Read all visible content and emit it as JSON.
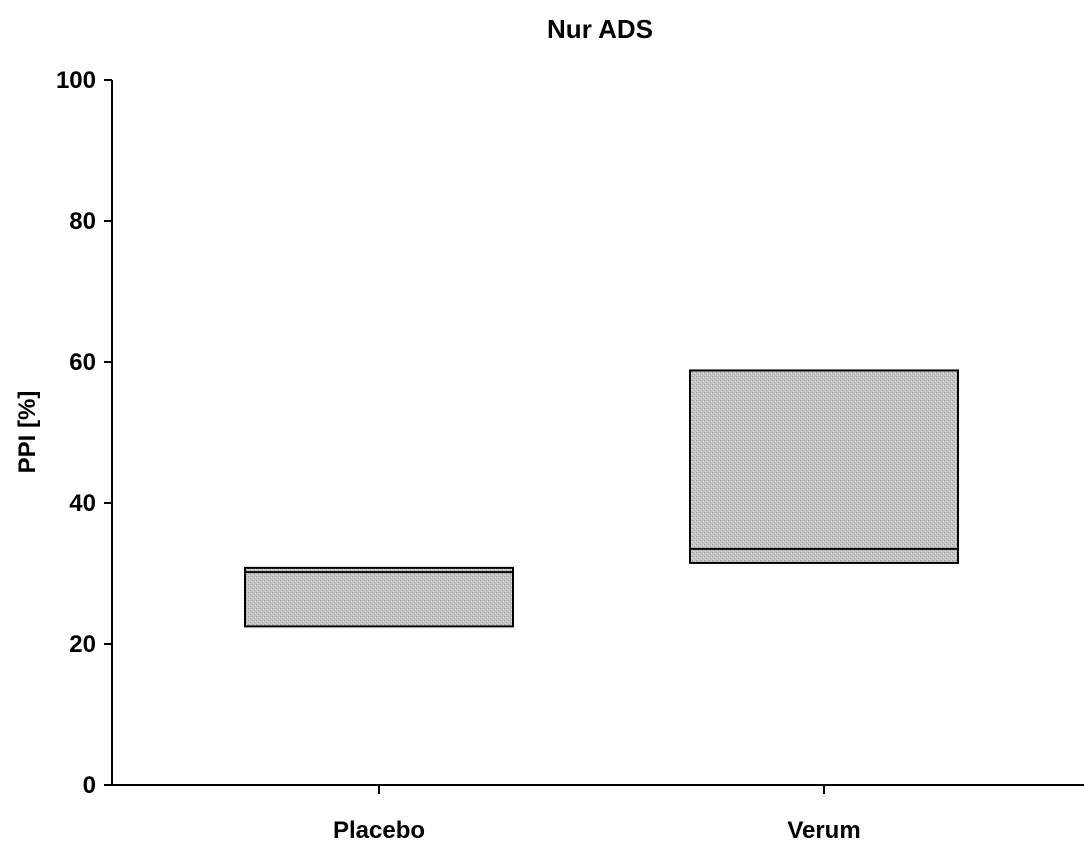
{
  "chart_data": {
    "type": "box",
    "title": "Nur ADS",
    "xlabel": "",
    "ylabel": "PPI [%]",
    "ylim": [
      0,
      100
    ],
    "yticks": [
      "0",
      "20",
      "40",
      "60",
      "80",
      "100"
    ],
    "ytick_values": [
      0,
      20,
      40,
      60,
      80,
      100
    ],
    "categories": [
      "Placebo",
      "Verum"
    ],
    "boxes": [
      {
        "category": "Placebo",
        "q1": 22.5,
        "median": 30.2,
        "q3": 30.8
      },
      {
        "category": "Verum",
        "q1": 31.5,
        "median": 33.5,
        "q3": 58.8
      }
    ],
    "box_fill": "#bdbdbd",
    "grid": false,
    "legend": "none"
  }
}
